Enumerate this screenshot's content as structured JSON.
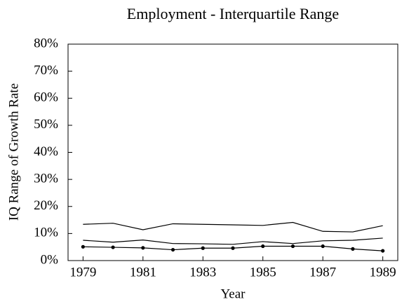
{
  "chart_data": {
    "type": "line",
    "title": "Employment - Interquartile Range",
    "x_label": "Year",
    "y_label": "IQ Range of Growth Rate",
    "x": [
      1979,
      1980,
      1981,
      1982,
      1983,
      1984,
      1985,
      1986,
      1987,
      1988,
      1989
    ],
    "series": [
      {
        "color": "#000000",
        "values": [
          13.4,
          13.8,
          11.4,
          13.6,
          13.4,
          13.2,
          13.0,
          14.1,
          10.8,
          10.6,
          12.9
        ]
      },
      {
        "color": "#000000",
        "values": [
          7.5,
          6.8,
          7.6,
          6.3,
          6.2,
          6.0,
          7.0,
          6.3,
          7.3,
          7.5,
          8.3
        ]
      },
      {
        "color": "#000000",
        "marker": "circle",
        "values": [
          5.1,
          4.9,
          4.7,
          4.0,
          4.6,
          4.6,
          5.3,
          5.3,
          5.3,
          4.3,
          3.6
        ]
      }
    ],
    "xlim": [
      1978.5,
      1989.5
    ],
    "xticks": [
      1979,
      1981,
      1983,
      1985,
      1987,
      1989
    ],
    "ylim": [
      0,
      80
    ],
    "yticks": [
      {
        "value": 0,
        "label": "0%"
      },
      {
        "value": 10,
        "label": "10%"
      },
      {
        "value": 20,
        "label": "20%"
      },
      {
        "value": 30,
        "label": "30%"
      },
      {
        "value": 40,
        "label": "40%"
      },
      {
        "value": 50,
        "label": "50%"
      },
      {
        "value": 60,
        "label": "60%"
      },
      {
        "value": 70,
        "label": "70%"
      },
      {
        "value": 80,
        "label": "80%"
      }
    ]
  }
}
